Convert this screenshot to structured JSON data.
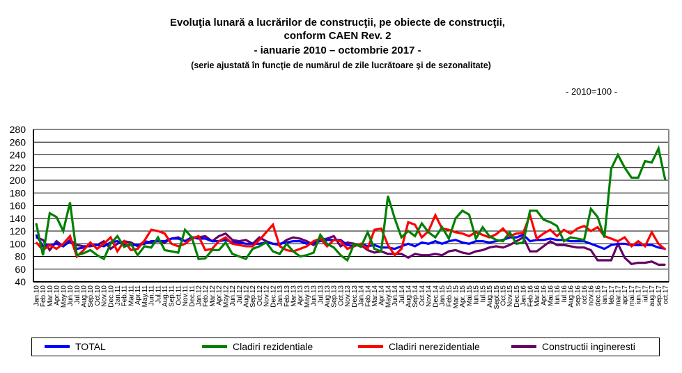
{
  "chart_data": {
    "type": "line",
    "title": [
      "Evoluţia lunară a lucrărilor de construcţii, pe obiecte de construcţii,",
      "conform CAEN Rev. 2",
      "- ianuarie 2010 – octombrie 2017 -"
    ],
    "subtitle": "(serie ajustată în funcţie de numărul de zile lucrătoare şi de sezonalitate)",
    "unit_note": "- 2010=100 -",
    "xlabel": "",
    "ylabel": "",
    "ylim": [
      40,
      280
    ],
    "yticks": [
      40,
      60,
      80,
      100,
      120,
      140,
      160,
      180,
      200,
      220,
      240,
      260,
      280
    ],
    "grid": true,
    "legend_position": "bottom",
    "categories": [
      "Jan.10",
      "Feb.10",
      "Mar.10",
      "Apr.10",
      "May.10",
      "Jun.10",
      "Jul.10",
      "Aug.10",
      "Sep.10",
      "Oct.10",
      "Nov.10",
      "Dec.10",
      "Jan.11",
      "Feb.11",
      "Mar.11",
      "Apr.11",
      "May.11",
      "Jun.11",
      "Jul.11",
      "Aug.11",
      "Sep.11",
      "Oct.11",
      "Nov.11",
      "Dec.11",
      "Jan.12",
      "Feb.12",
      "Mar.12",
      "Apr.12",
      "May.12",
      "Jun.12",
      "Jul.12",
      "Aug.12",
      "Sep.12",
      "Oct.12",
      "Nov.12",
      "Dec.12",
      "Jan.13",
      "Feb.13",
      "Mar.13",
      "Apr.13",
      "May.13",
      "Jun.13",
      "Jul.13",
      "Aug.13",
      "Sep.13",
      "Oct.13",
      "Nov.13",
      "Dec.13",
      "Jan.14",
      "Feb.14",
      "Mar.14",
      "Apr.14",
      "May.14",
      "Jun.14",
      "Jul.14",
      "Aug.14",
      "Sep.14",
      "Oct.14",
      "Nov.14",
      "Dec.14",
      "Jan.15",
      "Feb.15",
      "Mar. 15",
      "Apr. 15",
      "Mai.15",
      "Iun.15",
      "Iul.15",
      "Aug.15",
      "Sept.15",
      "Oct.15",
      "Nov.15",
      "Dec.15",
      "Jan.16",
      "Feb.16",
      "Mar.16",
      "Apr.16",
      "Mai.16",
      "Iun.16",
      "Iul.16",
      "Aug.16",
      "sep.16",
      "oct.16",
      "nov.16",
      "dec.16",
      "ian.17",
      "feb.17",
      "mar.17",
      "apr.17",
      "mai.17",
      "iun.17",
      "iul.17",
      "aug.17",
      "sep.17",
      "oct.17"
    ],
    "series": [
      {
        "name": "TOTAL",
        "color": "#0000ff",
        "values": [
          114,
          96,
          98,
          100,
          96,
          104,
          92,
          94,
          98,
          98,
          96,
          102,
          104,
          98,
          98,
          98,
          100,
          104,
          104,
          104,
          108,
          108,
          104,
          110,
          108,
          108,
          104,
          104,
          106,
          102,
          102,
          100,
          100,
          100,
          102,
          100,
          100,
          102,
          104,
          104,
          100,
          102,
          104,
          106,
          106,
          106,
          98,
          96,
          100,
          96,
          98,
          94,
          94,
          92,
          96,
          100,
          96,
          102,
          100,
          104,
          100,
          104,
          106,
          102,
          100,
          104,
          104,
          102,
          104,
          106,
          110,
          110,
          114,
          104,
          106,
          106,
          108,
          106,
          106,
          104,
          104,
          104,
          100,
          96,
          92,
          98,
          100,
          100,
          98,
          98,
          98,
          98,
          94,
          92
        ]
      },
      {
        "name": "Cladiri rezidentiale",
        "color": "#008000",
        "values": [
          132,
          82,
          148,
          142,
          120,
          165,
          82,
          85,
          90,
          82,
          76,
          100,
          112,
          95,
          100,
          82,
          96,
          94,
          110,
          90,
          88,
          86,
          122,
          110,
          76,
          77,
          90,
          90,
          102,
          84,
          80,
          76,
          92,
          96,
          102,
          88,
          84,
          100,
          88,
          80,
          82,
          86,
          114,
          100,
          94,
          82,
          74,
          100,
          95,
          118,
          92,
          88,
          175,
          140,
          110,
          120,
          112,
          132,
          118,
          110,
          126,
          108,
          140,
          152,
          146,
          108,
          126,
          112,
          106,
          104,
          118,
          100,
          102,
          152,
          152,
          138,
          134,
          128,
          104,
          110,
          108,
          106,
          155,
          142,
          110,
          218,
          240,
          220,
          204,
          204,
          230,
          228,
          250,
          200
        ]
      },
      {
        "name": "Cladiri nerezidentiale",
        "color": "#ff0000",
        "values": [
          102,
          90,
          98,
          92,
          100,
          112,
          80,
          90,
          102,
          92,
          100,
          110,
          88,
          104,
          90,
          92,
          105,
          122,
          120,
          116,
          100,
          96,
          100,
          108,
          112,
          90,
          92,
          104,
          110,
          100,
          98,
          96,
          96,
          106,
          118,
          130,
          96,
          90,
          88,
          92,
          96,
          104,
          108,
          96,
          106,
          104,
          92,
          96,
          100,
          92,
          122,
          124,
          98,
          82,
          92,
          134,
          130,
          110,
          120,
          145,
          124,
          122,
          118,
          116,
          112,
          118,
          114,
          110,
          115,
          124,
          112,
          116,
          117,
          145,
          108,
          116,
          122,
          112,
          122,
          116,
          124,
          128,
          120,
          126,
          112,
          108,
          104,
          110,
          96,
          104,
          96,
          118,
          100,
          91
        ]
      },
      {
        "name": "Constructii ingineresti",
        "color": "#660066",
        "values": [
          110,
          106,
          90,
          104,
          96,
          106,
          98,
          96,
          96,
          98,
          104,
          92,
          100,
          104,
          102,
          96,
          104,
          102,
          104,
          102,
          108,
          110,
          104,
          110,
          110,
          112,
          104,
          112,
          116,
          106,
          104,
          106,
          100,
          110,
          104,
          100,
          98,
          106,
          110,
          108,
          104,
          98,
          106,
          108,
          112,
          96,
          102,
          100,
          98,
          90,
          86,
          88,
          84,
          84,
          84,
          78,
          84,
          82,
          82,
          84,
          82,
          88,
          90,
          86,
          84,
          88,
          90,
          94,
          96,
          94,
          98,
          104,
          110,
          88,
          88,
          96,
          104,
          98,
          98,
          96,
          94,
          94,
          90,
          74,
          74,
          74,
          100,
          78,
          68,
          70,
          70,
          72,
          67,
          67
        ]
      }
    ]
  }
}
